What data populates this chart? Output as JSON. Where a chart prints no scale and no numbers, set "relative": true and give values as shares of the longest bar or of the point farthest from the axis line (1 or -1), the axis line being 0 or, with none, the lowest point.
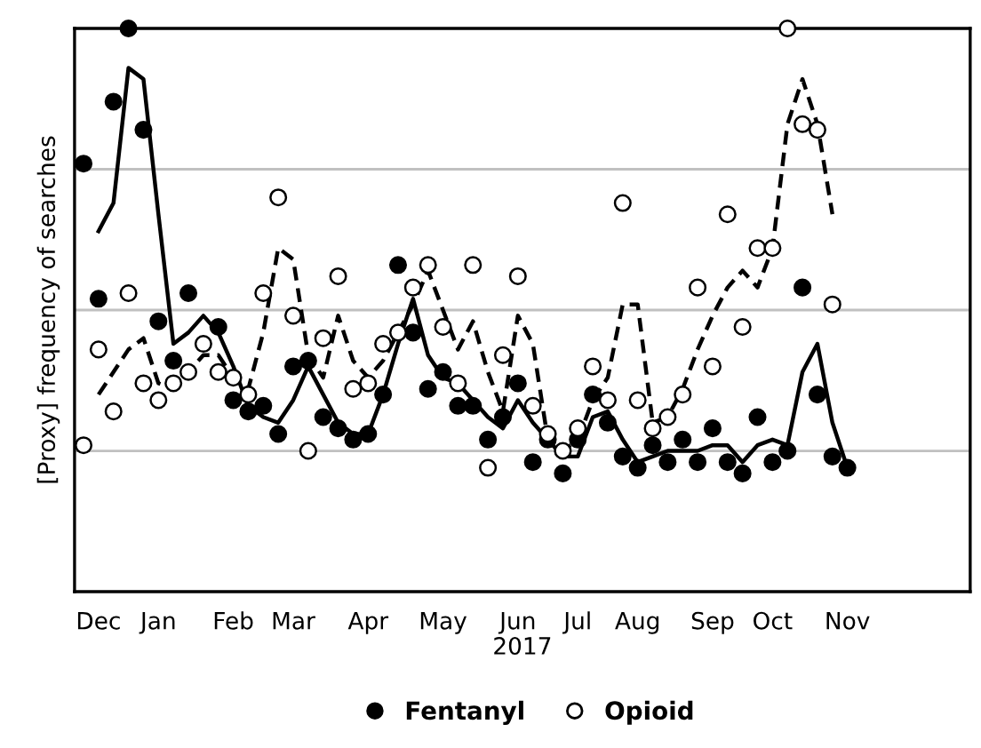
{
  "chart_data": {
    "type": "scatter",
    "relative": true,
    "ylabel": "[Proxy] frequency of searches",
    "xlabel": "2017",
    "categories": [
      null,
      "Dec",
      null,
      null,
      null,
      "Jan",
      null,
      null,
      null,
      null,
      "Feb",
      null,
      null,
      null,
      "Mar",
      null,
      null,
      null,
      null,
      "Apr",
      null,
      null,
      null,
      null,
      "May",
      null,
      null,
      null,
      null,
      "Jun",
      null,
      null,
      null,
      "Jul",
      null,
      null,
      null,
      "Aug",
      null,
      null,
      null,
      null,
      "Sep",
      null,
      null,
      null,
      "Oct",
      null,
      null,
      null,
      null,
      "Nov"
    ],
    "grid": "y",
    "legend": "bottom",
    "series": [
      {
        "name": "Fentanyl",
        "marker": "circle",
        "color": "#000000",
        "values": [
          0.76,
          0.52,
          0.87,
          1.0,
          0.82,
          0.48,
          0.41,
          0.53,
          null,
          0.47,
          0.34,
          0.32,
          0.33,
          0.28,
          0.4,
          0.41,
          0.31,
          0.29,
          0.27,
          0.28,
          0.35,
          0.58,
          0.46,
          0.36,
          0.39,
          0.33,
          0.33,
          0.27,
          0.31,
          0.37,
          0.23,
          0.27,
          0.21,
          0.27,
          0.35,
          0.3,
          0.24,
          0.22,
          0.26,
          0.23,
          0.27,
          0.23,
          0.29,
          0.23,
          0.21,
          0.31,
          0.23,
          0.25,
          0.54,
          0.35,
          0.24,
          0.22
        ]
      },
      {
        "name": "Opioid",
        "marker": "circle",
        "color": "#ffffff",
        "values": [
          0.26,
          0.43,
          0.32,
          0.53,
          0.37,
          0.34,
          0.37,
          0.39,
          0.44,
          0.39,
          0.38,
          0.35,
          0.53,
          0.7,
          0.49,
          0.25,
          0.45,
          0.56,
          0.36,
          0.37,
          0.44,
          0.46,
          0.54,
          0.58,
          0.47,
          0.37,
          0.58,
          0.22,
          0.42,
          0.56,
          0.33,
          0.28,
          0.25,
          0.29,
          0.4,
          0.34,
          0.69,
          0.34,
          0.29,
          0.31,
          0.35,
          0.54,
          0.4,
          0.67,
          0.47,
          0.61,
          0.61,
          1.0,
          0.83,
          0.82,
          0.51,
          null
        ]
      },
      {
        "type": "line",
        "line_style": "solid",
        "marker": "none",
        "color": "#000000",
        "values": [
          null,
          0.64,
          0.69,
          0.93,
          0.91,
          0.67,
          0.44,
          0.46,
          0.49,
          0.46,
          0.4,
          0.33,
          0.31,
          0.3,
          0.34,
          0.4,
          0.35,
          0.3,
          0.28,
          0.28,
          0.35,
          0.44,
          0.52,
          0.42,
          0.38,
          0.37,
          0.34,
          0.31,
          0.29,
          0.34,
          0.3,
          0.27,
          0.24,
          0.24,
          0.31,
          0.32,
          0.27,
          0.23,
          0.24,
          0.25,
          0.25,
          0.25,
          0.26,
          0.26,
          0.23,
          0.26,
          0.27,
          0.26,
          0.39,
          0.44,
          0.3,
          0.22
        ]
      },
      {
        "type": "line",
        "line_style": "dashed",
        "marker": "none",
        "color": "#000000",
        "values": [
          null,
          0.35,
          0.39,
          0.43,
          0.45,
          0.37,
          0.36,
          0.39,
          0.42,
          0.42,
          0.38,
          0.36,
          0.46,
          0.61,
          0.59,
          0.42,
          0.38,
          0.49,
          0.41,
          0.38,
          0.41,
          0.46,
          0.51,
          0.57,
          0.5,
          0.43,
          0.48,
          0.39,
          0.32,
          0.49,
          0.44,
          0.27,
          0.25,
          0.27,
          0.34,
          0.38,
          0.51,
          0.51,
          0.3,
          0.31,
          0.36,
          0.43,
          0.49,
          0.54,
          0.57,
          0.54,
          0.61,
          0.83,
          0.91,
          0.83,
          0.67,
          null
        ]
      }
    ]
  }
}
